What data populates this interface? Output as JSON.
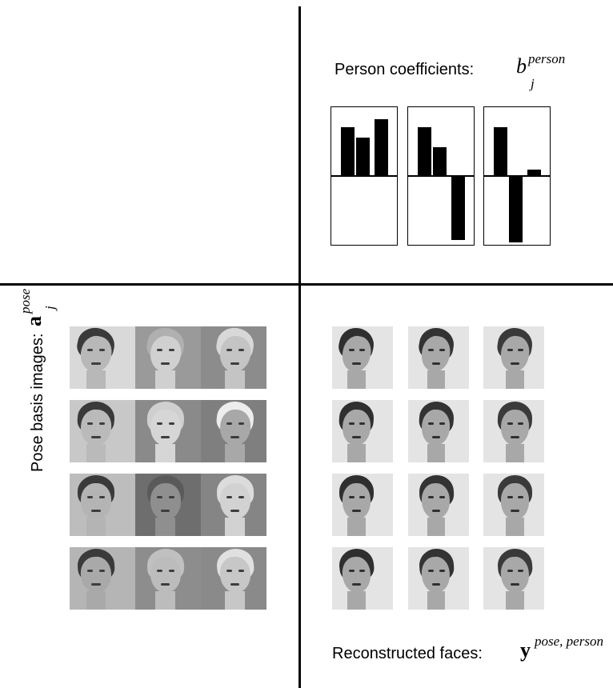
{
  "person_title": {
    "text": "Person coefficients:",
    "symbol": "b",
    "superscript": "person",
    "subscript": "j"
  },
  "pose_title": {
    "text": "Pose basis images:",
    "symbol": "a",
    "superscript": "pose",
    "subscript": "j"
  },
  "reconstructed_title": {
    "text": "Reconstructed faces:",
    "symbol": "y",
    "superscript": "pose, person"
  },
  "coefficients": [
    {
      "values": [
        0.74,
        0.58,
        0.85
      ]
    },
    {
      "values": [
        0.74,
        0.43,
        -0.96
      ]
    },
    {
      "values": [
        0.73,
        -1.0,
        0.1
      ]
    }
  ],
  "colors": {
    "line": "#000000",
    "bar": "#000000",
    "background": "#ffffff"
  },
  "pose_basis_rows": 4,
  "pose_basis_cols": 3,
  "reconstructed_rows": 4,
  "reconstructed_cols": 3
}
